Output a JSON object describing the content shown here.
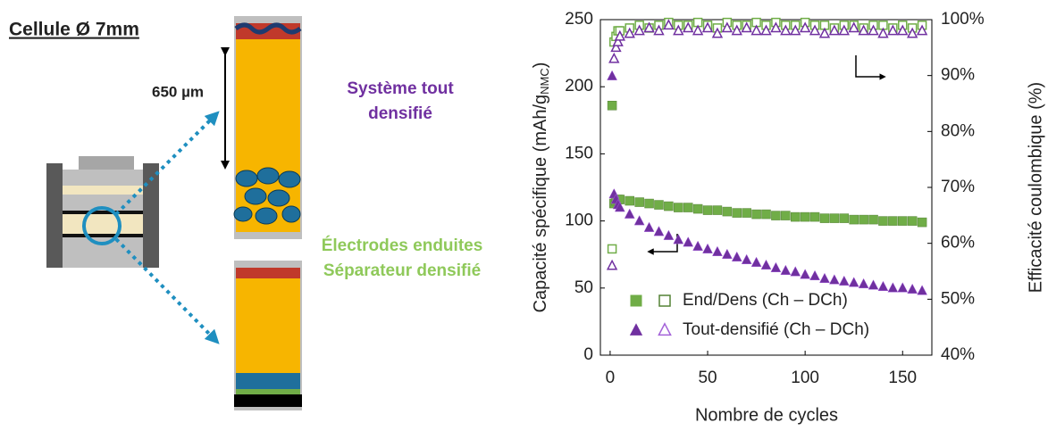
{
  "diagram": {
    "cell_title": "Cellule Ø 7mm",
    "thickness": "650 µm",
    "top_label": [
      "Système tout",
      "densifié"
    ],
    "bottom_label": [
      "Électrodes enduites",
      "Séparateur densifié"
    ]
  },
  "chart_data": {
    "type": "scatter",
    "x_label": "Nombre de cycles",
    "y_label": {
      "text": "Capacité spécifique (mAh/g",
      "sub": "NMC",
      "end": ")"
    },
    "y2_label": "Efficacité coulombique (%)",
    "xlim": [
      -5,
      165
    ],
    "xticks": [
      0,
      50,
      100,
      150
    ],
    "ylim": [
      0,
      250
    ],
    "yticks": [
      0,
      50,
      100,
      150,
      200,
      250
    ],
    "y2lim": [
      40,
      100
    ],
    "y2ticks": [
      {
        "value": 40,
        "label": "40%"
      },
      {
        "value": 50,
        "label": "50%"
      },
      {
        "value": 60,
        "label": "60%"
      },
      {
        "value": 70,
        "label": "70%"
      },
      {
        "value": 80,
        "label": "80%"
      },
      {
        "value": 90,
        "label": "90%"
      },
      {
        "value": 100,
        "label": "100%"
      }
    ],
    "x": [
      1,
      2,
      3,
      4,
      5,
      10,
      15,
      20,
      25,
      30,
      35,
      40,
      45,
      50,
      55,
      60,
      65,
      70,
      75,
      80,
      85,
      90,
      95,
      100,
      105,
      110,
      115,
      120,
      125,
      130,
      135,
      140,
      145,
      150,
      155,
      160
    ],
    "series": [
      {
        "name": "End/Dens (Ch – DCh)",
        "color": "#70ad47",
        "edge": "#548235",
        "marker": "square",
        "capacity": [
          186,
          113,
          115,
          116,
          116,
          115,
          114,
          113,
          112,
          111,
          110,
          110,
          109,
          108,
          108,
          107,
          106,
          106,
          105,
          105,
          104,
          104,
          103,
          103,
          103,
          102,
          102,
          102,
          101,
          101,
          101,
          100,
          100,
          100,
          100,
          99
        ],
        "efficiency": [
          59,
          96,
          97,
          98,
          98,
          98.5,
          99,
          98.5,
          99,
          99.5,
          99,
          99,
          99.5,
          99,
          98.5,
          99.5,
          99,
          99,
          99.5,
          99,
          99.5,
          99,
          99,
          99.5,
          99,
          99,
          98.5,
          99,
          99,
          98.5,
          99,
          99,
          98.5,
          99,
          98.5,
          99
        ]
      },
      {
        "name": "Tout-densifié (Ch – DCh)",
        "color": "#7030a0",
        "edge": "#a361d8",
        "marker": "triangle",
        "capacity": [
          208,
          120,
          116,
          112,
          110,
          105,
          100,
          95,
          92,
          89,
          86,
          84,
          81,
          79,
          77,
          75,
          73,
          71,
          69,
          67,
          65,
          63,
          62,
          60,
          59,
          57,
          56,
          55,
          54,
          53,
          52,
          51,
          50,
          50,
          49,
          48
        ],
        "efficiency": [
          56,
          93,
          95,
          96,
          97,
          97.5,
          98,
          98.5,
          98,
          99,
          98,
          98.5,
          98,
          98.5,
          97.5,
          98.5,
          98,
          98.5,
          98,
          98,
          98.5,
          98,
          98,
          98.5,
          98,
          97.5,
          98,
          98,
          98.5,
          98,
          98,
          97.5,
          98,
          98,
          97.5,
          98
        ]
      }
    ]
  }
}
